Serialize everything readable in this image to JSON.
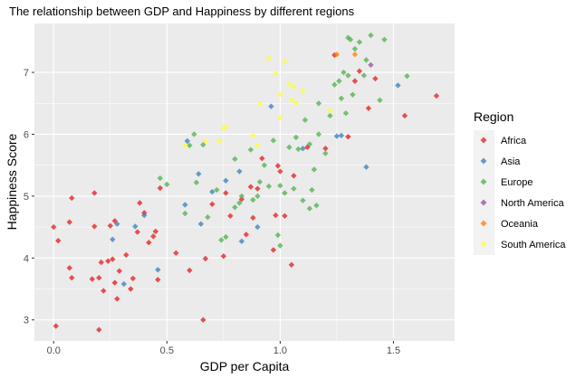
{
  "chart_data": {
    "type": "scatter",
    "title": "The relationship between GDP and Happiness by different regions",
    "xlabel": "GDP per Capita",
    "ylabel": "Happiness Score",
    "xlim": [
      -0.085,
      1.77
    ],
    "ylim": [
      2.66,
      7.79
    ],
    "xticks": [
      "0.0",
      "0.5",
      "1.0",
      "1.5"
    ],
    "yticks": [
      "3",
      "4",
      "5",
      "6",
      "7"
    ],
    "grid": true,
    "legend": {
      "title": "Region",
      "position": "right"
    },
    "series": [
      {
        "name": "Africa",
        "color": "#E41A1C",
        "points": [
          [
            0.0,
            4.5
          ],
          [
            0.02,
            4.28
          ],
          [
            0.01,
            2.9
          ],
          [
            0.07,
            4.58
          ],
          [
            0.08,
            4.97
          ],
          [
            0.07,
            3.84
          ],
          [
            0.08,
            3.68
          ],
          [
            0.17,
            3.66
          ],
          [
            0.18,
            5.05
          ],
          [
            0.18,
            4.51
          ],
          [
            0.2,
            3.68
          ],
          [
            0.2,
            2.84
          ],
          [
            0.21,
            3.93
          ],
          [
            0.22,
            3.47
          ],
          [
            0.24,
            3.95
          ],
          [
            0.25,
            4.52
          ],
          [
            0.26,
            3.98
          ],
          [
            0.27,
            4.6
          ],
          [
            0.27,
            3.6
          ],
          [
            0.28,
            3.34
          ],
          [
            0.29,
            3.79
          ],
          [
            0.32,
            4.05
          ],
          [
            0.34,
            3.5
          ],
          [
            0.35,
            3.67
          ],
          [
            0.37,
            4.42
          ],
          [
            0.38,
            4.89
          ],
          [
            0.4,
            4.73
          ],
          [
            0.42,
            4.25
          ],
          [
            0.44,
            4.35
          ],
          [
            0.45,
            4.43
          ],
          [
            0.46,
            3.65
          ],
          [
            0.47,
            5.13
          ],
          [
            0.54,
            4.08
          ],
          [
            0.6,
            3.8
          ],
          [
            0.66,
            3.0
          ],
          [
            0.67,
            3.99
          ],
          [
            0.7,
            4.87
          ],
          [
            0.75,
            4.03
          ],
          [
            0.76,
            5.05
          ],
          [
            0.78,
            4.68
          ],
          [
            0.83,
            4.95
          ],
          [
            0.85,
            4.38
          ],
          [
            0.87,
            5.15
          ],
          [
            0.88,
            4.65
          ],
          [
            0.9,
            5.12
          ],
          [
            0.92,
            5.61
          ],
          [
            0.97,
            4.13
          ],
          [
            0.98,
            4.69
          ],
          [
            0.99,
            5.49
          ],
          [
            1.0,
            5.4
          ],
          [
            1.02,
            4.68
          ],
          [
            1.05,
            3.89
          ],
          [
            1.06,
            5.33
          ],
          [
            1.12,
            5.79
          ],
          [
            1.2,
            5.77
          ],
          [
            1.24,
            7.28
          ],
          [
            1.3,
            5.96
          ],
          [
            1.33,
            6.86
          ],
          [
            1.35,
            7.02
          ],
          [
            1.39,
            6.42
          ],
          [
            1.42,
            6.9
          ],
          [
            1.55,
            6.3
          ],
          [
            1.69,
            6.62
          ]
        ]
      },
      {
        "name": "Asia",
        "color": "#377EB8",
        "points": [
          [
            0.26,
            4.3
          ],
          [
            0.28,
            4.55
          ],
          [
            0.31,
            3.58
          ],
          [
            0.36,
            4.51
          ],
          [
            0.4,
            4.69
          ],
          [
            0.46,
            3.81
          ],
          [
            0.58,
            4.86
          ],
          [
            0.59,
            5.89
          ],
          [
            0.64,
            5.36
          ],
          [
            0.65,
            4.55
          ],
          [
            0.7,
            5.07
          ],
          [
            0.76,
            5.25
          ],
          [
            0.82,
            5.4
          ],
          [
            0.83,
            4.27
          ],
          [
            0.9,
            4.5
          ],
          [
            0.96,
            6.45
          ],
          [
            1.1,
            5.77
          ],
          [
            1.25,
            5.97
          ],
          [
            1.27,
            5.98
          ],
          [
            1.38,
            5.47
          ],
          [
            1.52,
            6.79
          ]
        ]
      },
      {
        "name": "Europe",
        "color": "#4DAF4A",
        "points": [
          [
            0.47,
            5.29
          ],
          [
            0.5,
            5.19
          ],
          [
            0.58,
            4.72
          ],
          [
            0.6,
            5.82
          ],
          [
            0.62,
            6.0
          ],
          [
            0.63,
            5.22
          ],
          [
            0.66,
            5.83
          ],
          [
            0.68,
            4.66
          ],
          [
            0.72,
            5.1
          ],
          [
            0.74,
            4.29
          ],
          [
            0.76,
            4.34
          ],
          [
            0.8,
            5.6
          ],
          [
            0.8,
            4.82
          ],
          [
            0.82,
            4.89
          ],
          [
            0.83,
            5.0
          ],
          [
            0.87,
            5.75
          ],
          [
            0.88,
            4.94
          ],
          [
            0.9,
            5.0
          ],
          [
            0.91,
            5.23
          ],
          [
            0.93,
            5.5
          ],
          [
            0.95,
            5.16
          ],
          [
            0.97,
            5.9
          ],
          [
            0.99,
            4.37
          ],
          [
            1.0,
            4.2
          ],
          [
            1.0,
            5.17
          ],
          [
            1.02,
            5.05
          ],
          [
            1.04,
            5.79
          ],
          [
            1.06,
            5.12
          ],
          [
            1.07,
            5.95
          ],
          [
            1.08,
            5.76
          ],
          [
            1.1,
            4.93
          ],
          [
            1.11,
            6.23
          ],
          [
            1.13,
            4.8
          ],
          [
            1.13,
            5.84
          ],
          [
            1.14,
            5.1
          ],
          [
            1.15,
            5.43
          ],
          [
            1.16,
            4.85
          ],
          [
            1.17,
            6.0
          ],
          [
            1.17,
            6.5
          ],
          [
            1.2,
            5.69
          ],
          [
            1.22,
            6.3
          ],
          [
            1.24,
            6.8
          ],
          [
            1.26,
            6.86
          ],
          [
            1.27,
            6.58
          ],
          [
            1.28,
            7.0
          ],
          [
            1.29,
            6.34
          ],
          [
            1.3,
            7.56
          ],
          [
            1.3,
            6.95
          ],
          [
            1.31,
            7.53
          ],
          [
            1.32,
            6.64
          ],
          [
            1.33,
            7.38
          ],
          [
            1.35,
            7.49
          ],
          [
            1.37,
            6.95
          ],
          [
            1.38,
            7.2
          ],
          [
            1.4,
            7.6
          ],
          [
            1.44,
            6.55
          ],
          [
            1.46,
            7.53
          ],
          [
            1.56,
            6.94
          ]
        ]
      },
      {
        "name": "North America",
        "color": "#984EA3",
        "points": [
          [
            1.4,
            7.12
          ]
        ]
      },
      {
        "name": "Oceania",
        "color": "#FF7F00",
        "points": [
          [
            1.25,
            7.29
          ],
          [
            1.33,
            7.29
          ]
        ]
      },
      {
        "name": "South America",
        "color": "#FFFF33",
        "points": [
          [
            0.58,
            5.82
          ],
          [
            0.67,
            5.89
          ],
          [
            0.73,
            5.89
          ],
          [
            0.76,
            6.12
          ],
          [
            0.75,
            6.1
          ],
          [
            0.88,
            5.98
          ],
          [
            0.9,
            5.82
          ],
          [
            0.91,
            6.49
          ],
          [
            0.95,
            7.23
          ],
          [
            0.98,
            6.98
          ],
          [
            1.0,
            6.64
          ],
          [
            1.0,
            6.27
          ],
          [
            1.02,
            7.18
          ],
          [
            1.04,
            6.81
          ],
          [
            1.06,
            6.77
          ],
          [
            1.05,
            6.55
          ],
          [
            1.07,
            6.51
          ],
          [
            1.1,
            6.7
          ],
          [
            1.22,
            6.38
          ]
        ]
      }
    ]
  }
}
